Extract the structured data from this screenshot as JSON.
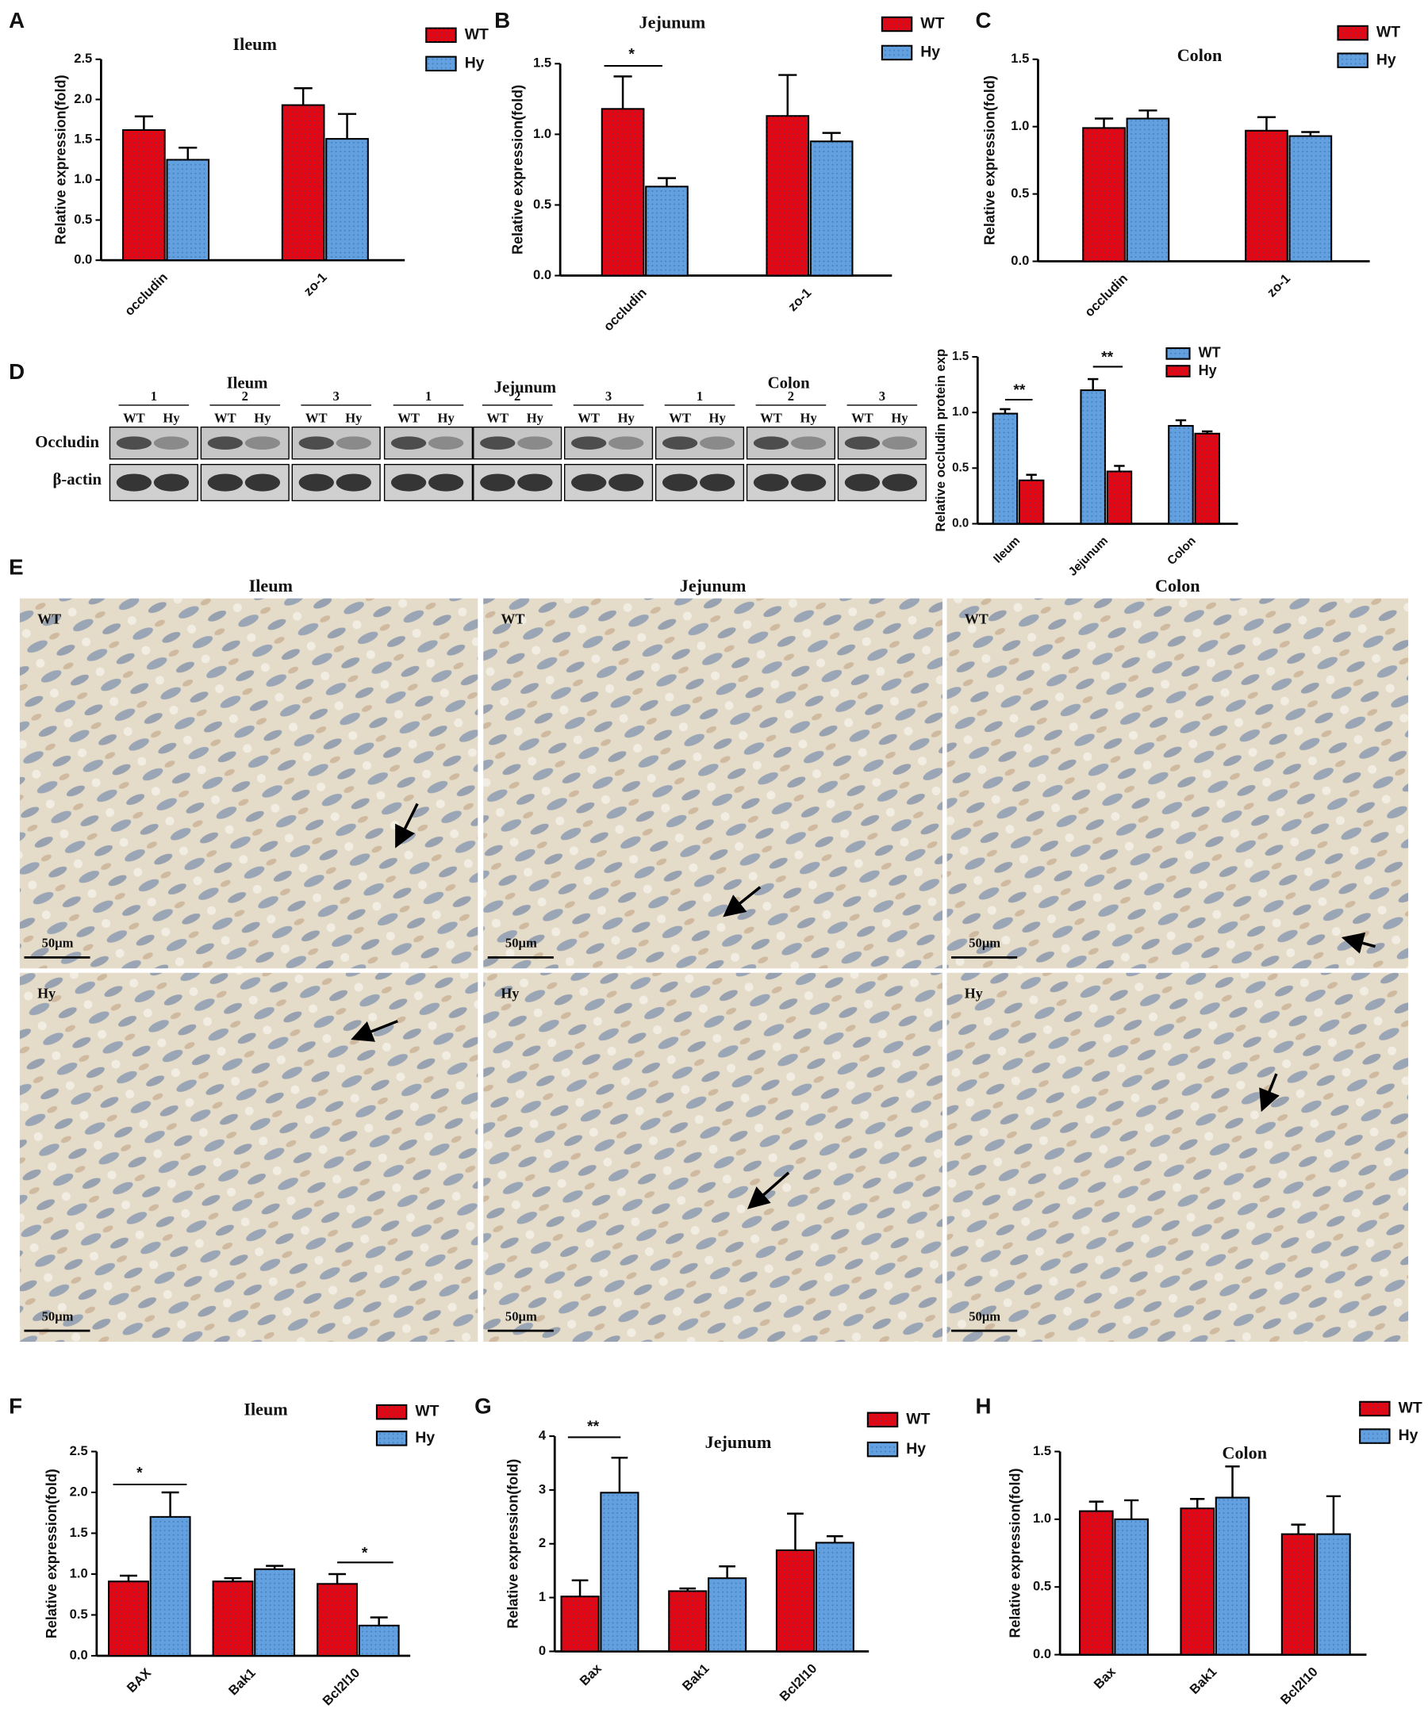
{
  "panels": [
    "A",
    "B",
    "C",
    "D",
    "E",
    "F",
    "G",
    "H"
  ],
  "blot": {
    "tissues": [
      {
        "name": "Ileum",
        "groups": [
          "1",
          "2",
          "3"
        ]
      },
      {
        "name": "Jejunum",
        "groups": [
          "1",
          "2",
          "3"
        ]
      },
      {
        "name": "Colon",
        "groups": [
          "1",
          "2",
          "3"
        ]
      }
    ],
    "lanes": [
      "WT",
      "Hy"
    ],
    "rows": [
      "Occludin",
      "β-actin"
    ]
  },
  "micrographs": {
    "columns": [
      "Ileum",
      "Jejunum",
      "Colon"
    ],
    "rows": [
      "WT",
      "Hy"
    ],
    "scale_bar": "50μm"
  },
  "chart_data": [
    {
      "type": "bar",
      "title": "Ileum",
      "y_label": "Relative expression(fold)",
      "categories": [
        "occludin",
        "zo-1"
      ],
      "series": [
        {
          "name": "WT",
          "color": "#e30613",
          "values": [
            1.62,
            1.93
          ],
          "errors": [
            0.17,
            0.21
          ]
        },
        {
          "name": "Hy",
          "color": "#62a0e0",
          "values": [
            1.25,
            1.51
          ],
          "errors": [
            0.15,
            0.31
          ]
        }
      ],
      "ylim": [
        0,
        2.5
      ],
      "yticks": [
        {
          "value": 0,
          "label": "0.0"
        },
        0.5,
        {
          "value": 1,
          "label": "1.0"
        },
        1.5,
        {
          "value": 2,
          "label": "2.0"
        },
        2.5
      ],
      "annotations": []
    },
    {
      "type": "bar",
      "title": "Jejunum",
      "y_label": "Relative expression(fold)",
      "categories": [
        "occludin",
        "zo-1"
      ],
      "series": [
        {
          "name": "WT",
          "color": "#e30613",
          "values": [
            1.18,
            1.13
          ],
          "errors": [
            0.23,
            0.29
          ]
        },
        {
          "name": "Hy",
          "color": "#62a0e0",
          "values": [
            0.63,
            0.95
          ],
          "errors": [
            0.06,
            0.06
          ]
        }
      ],
      "ylim": [
        0,
        1.5
      ],
      "yticks": [
        {
          "value": 0,
          "label": "0.0"
        },
        0.5,
        {
          "value": 1,
          "label": "1.0"
        },
        1.5
      ],
      "annotations": [
        "*"
      ]
    },
    {
      "type": "bar",
      "title": "Colon",
      "y_label": "Relative expression(fold)",
      "categories": [
        "occludin",
        "zo-1"
      ],
      "series": [
        {
          "name": "WT",
          "color": "#e30613",
          "values": [
            0.99,
            0.97
          ],
          "errors": [
            0.07,
            0.1
          ]
        },
        {
          "name": "Hy",
          "color": "#62a0e0",
          "values": [
            1.06,
            0.93
          ],
          "errors": [
            0.06,
            0.03
          ]
        }
      ],
      "ylim": [
        0,
        1.5
      ],
      "yticks": [
        {
          "value": 0,
          "label": "0.0"
        },
        0.5,
        {
          "value": 1,
          "label": "1.0"
        },
        1.5
      ],
      "annotations": []
    },
    {
      "type": "bar",
      "y_label": "Relative occludin protein exp",
      "categories": [
        "Ileum",
        "Jejunum",
        "Colon"
      ],
      "series": [
        {
          "name": "WT",
          "color": "#62a0e0",
          "values": [
            0.99,
            1.2,
            0.88
          ],
          "errors": [
            0.04,
            0.1,
            0.05
          ]
        },
        {
          "name": "Hy",
          "color": "#e30613",
          "values": [
            0.39,
            0.47,
            0.81
          ],
          "errors": [
            0.05,
            0.05,
            0.02
          ]
        }
      ],
      "ylim": [
        0,
        1.5
      ],
      "yticks": [
        {
          "value": 0,
          "label": "0.0"
        },
        0.5,
        {
          "value": 1,
          "label": "1.0"
        },
        1.5
      ],
      "annotations": [
        "**",
        "**"
      ]
    },
    {
      "type": "bar",
      "title": "Ileum",
      "y_label": "Relative expression(fold)",
      "categories": [
        "BAX",
        "Bak1",
        "Bcl2l10"
      ],
      "series": [
        {
          "name": "WT",
          "color": "#e30613",
          "values": [
            0.91,
            0.91,
            0.88
          ],
          "errors": [
            0.07,
            0.04,
            0.12
          ]
        },
        {
          "name": "Hy",
          "color": "#62a0e0",
          "values": [
            1.7,
            1.06,
            0.37
          ],
          "errors": [
            0.3,
            0.04,
            0.1
          ]
        }
      ],
      "ylim": [
        0,
        2.5
      ],
      "yticks": [
        {
          "value": 0,
          "label": "0.0"
        },
        0.5,
        {
          "value": 1,
          "label": "1.0"
        },
        1.5,
        {
          "value": 2,
          "label": "2.0"
        },
        2.5
      ],
      "annotations": [
        "*",
        "*"
      ]
    },
    {
      "type": "bar",
      "title": "Jejunum",
      "y_label": "Relative expression(fold)",
      "categories": [
        "Bax",
        "Bak1",
        "Bcl2l10"
      ],
      "series": [
        {
          "name": "WT",
          "color": "#e30613",
          "values": [
            1.02,
            1.12,
            1.88
          ],
          "errors": [
            0.3,
            0.05,
            0.68
          ]
        },
        {
          "name": "Hy",
          "color": "#62a0e0",
          "values": [
            2.95,
            1.36,
            2.02
          ],
          "errors": [
            0.65,
            0.22,
            0.12
          ]
        }
      ],
      "ylim": [
        0,
        4
      ],
      "yticks": [
        0,
        1,
        2,
        3,
        4
      ],
      "annotations": [
        "**"
      ]
    },
    {
      "type": "bar",
      "title": "Colon",
      "y_label": "Relative expression(fold)",
      "categories": [
        "Bax",
        "Bak1",
        "Bcl2l10"
      ],
      "series": [
        {
          "name": "WT",
          "color": "#e30613",
          "values": [
            1.06,
            1.08,
            0.89
          ],
          "errors": [
            0.07,
            0.07,
            0.07
          ]
        },
        {
          "name": "Hy",
          "color": "#62a0e0",
          "values": [
            1.0,
            1.16,
            0.89
          ],
          "errors": [
            0.14,
            0.23,
            0.28
          ]
        }
      ],
      "ylim": [
        0,
        1.5
      ],
      "yticks": [
        {
          "value": 0,
          "label": "0.0"
        },
        0.5,
        {
          "value": 1,
          "label": "1.0"
        },
        1.5
      ],
      "annotations": []
    }
  ]
}
